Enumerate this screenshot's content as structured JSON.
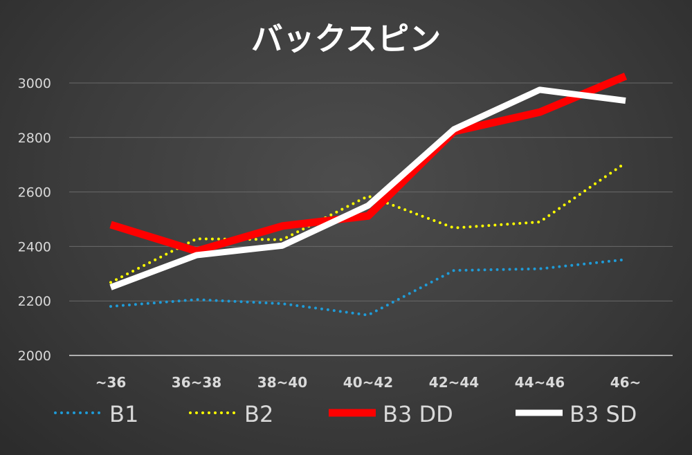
{
  "chart_data": {
    "type": "line",
    "title": "バックスピン",
    "xlabel": "",
    "ylabel": "",
    "categories": [
      "~36",
      "36~38",
      "38~40",
      "40~42",
      "42~44",
      "44~46",
      "46~"
    ],
    "ylim": [
      2000,
      3000
    ],
    "yticks": [
      2000,
      2200,
      2400,
      2600,
      2800,
      3000
    ],
    "grid": true,
    "legend_position": "bottom",
    "series": [
      {
        "name": "B1",
        "values": [
          2180,
          2205,
          2190,
          2148,
          2312,
          2318,
          2352
        ],
        "color": "#1f9bd7",
        "style": "dotted"
      },
      {
        "name": "B2",
        "values": [
          2268,
          2428,
          2425,
          2585,
          2468,
          2490,
          2707
        ],
        "color": "#ffff00",
        "style": "dotted"
      },
      {
        "name": "B3 DD",
        "values": [
          2480,
          2383,
          2475,
          2512,
          2822,
          2893,
          3025
        ],
        "color": "#ff0000",
        "style": "solid-thick"
      },
      {
        "name": "B3 SD",
        "values": [
          2250,
          2368,
          2403,
          2550,
          2830,
          2975,
          2935
        ],
        "color": "#ffffff",
        "style": "solid-thick"
      }
    ]
  }
}
